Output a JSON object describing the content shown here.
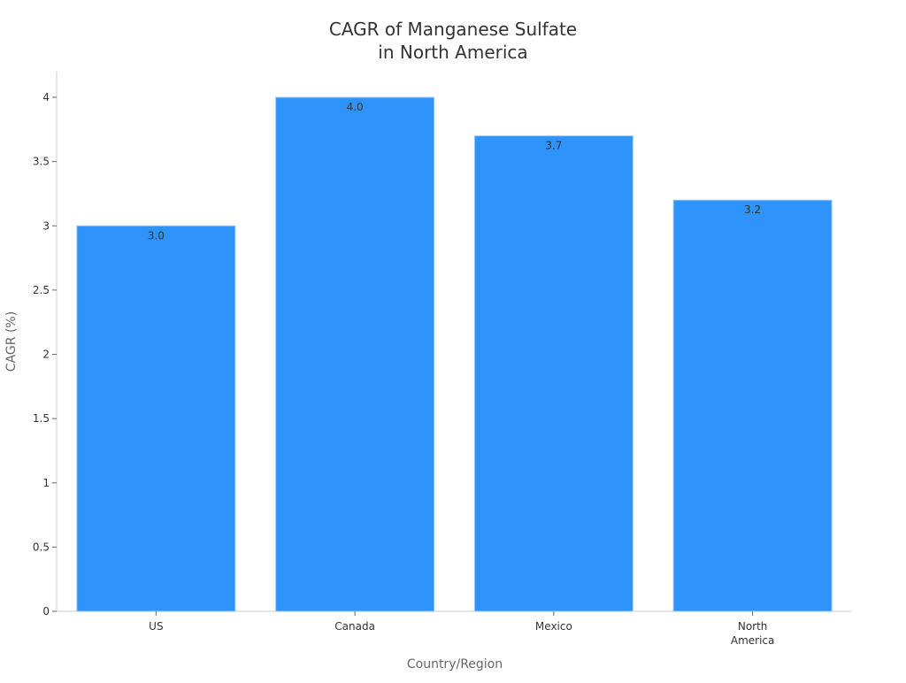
{
  "chart_data": {
    "type": "bar",
    "title": [
      "CAGR of Manganese Sulfate",
      "in North America"
    ],
    "xlabel": "Country/Region",
    "ylabel": "CAGR (%)",
    "categories": [
      [
        "US"
      ],
      [
        "Canada"
      ],
      [
        "Mexico"
      ],
      [
        "North",
        "America"
      ]
    ],
    "values": [
      3.0,
      4.0,
      3.7,
      3.2
    ],
    "data_labels": [
      "3.0",
      "4.0",
      "3.7",
      "3.2"
    ],
    "ylim": [
      0,
      4.2
    ],
    "yticks": [
      0,
      0.5,
      1,
      1.5,
      2,
      2.5,
      3,
      3.5,
      4
    ],
    "ytick_labels": [
      "0",
      "0.5",
      "1",
      "1.5",
      "2",
      "2.5",
      "3",
      "3.5",
      "4"
    ],
    "grid": false,
    "legend": "none",
    "colors": {
      "bar": "#2E93FA",
      "text": "#333333",
      "axis": "#cccccc"
    }
  }
}
